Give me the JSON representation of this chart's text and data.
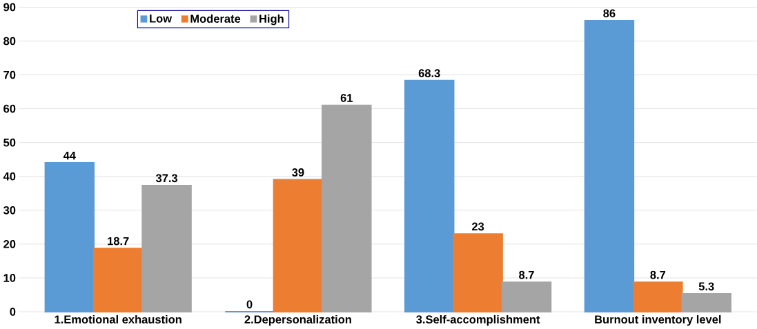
{
  "chart_data": {
    "type": "bar",
    "categories": [
      "1.Emotional exhaustion",
      "2.Depersonalization",
      "3.Self-accomplishment",
      "Burnout inventory level"
    ],
    "series": [
      {
        "name": "Low",
        "color": "#5b9bd5",
        "values": [
          44,
          0,
          68.3,
          86
        ]
      },
      {
        "name": "Moderate",
        "color": "#ed7d31",
        "values": [
          18.7,
          39,
          23,
          8.7
        ]
      },
      {
        "name": "High",
        "color": "#a5a5a5",
        "values": [
          37.3,
          61,
          8.7,
          5.3
        ]
      }
    ],
    "ylim": [
      0,
      90
    ],
    "yticks": [
      0,
      10,
      20,
      30,
      40,
      50,
      60,
      70,
      80,
      90
    ],
    "grid": "y",
    "legend": "top left",
    "data_labels": true
  }
}
